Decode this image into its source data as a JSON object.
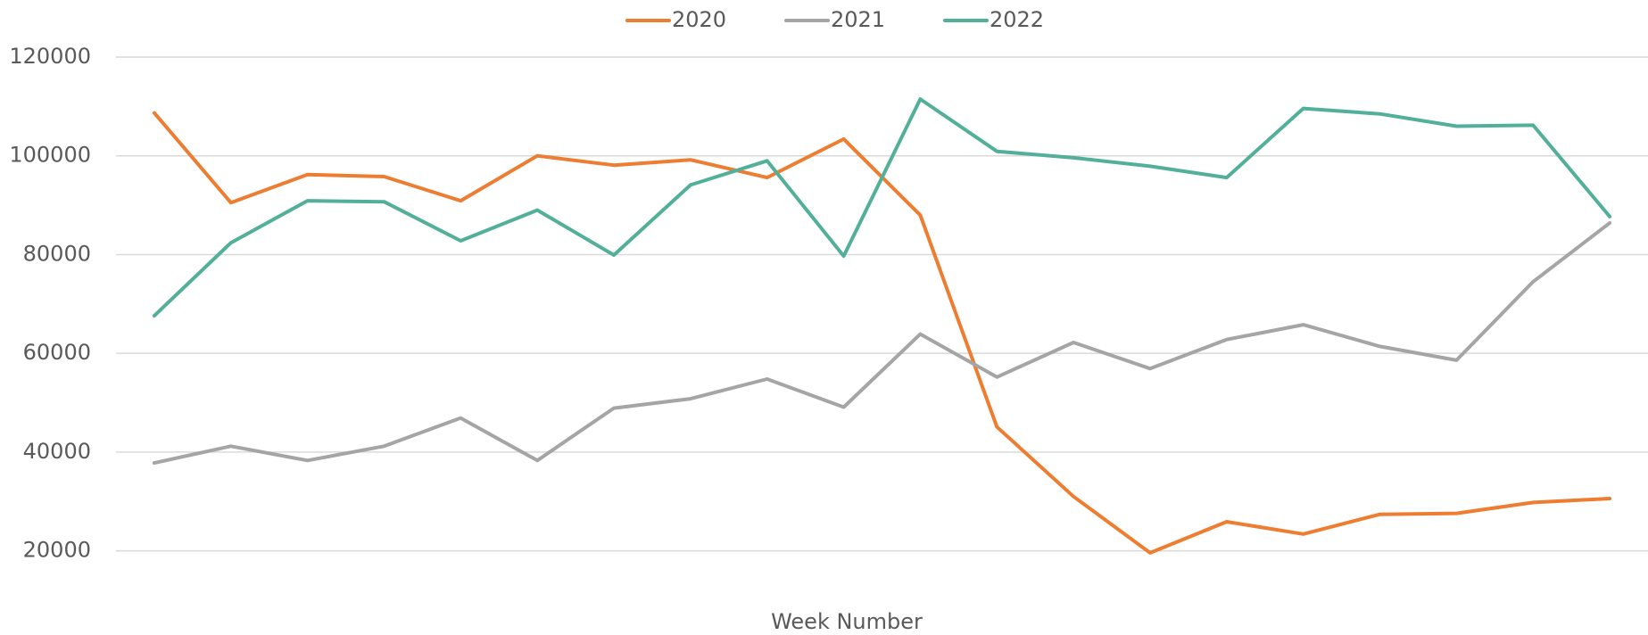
{
  "chart_data": {
    "type": "line",
    "x_label": "Week Number",
    "categories": [
      null,
      null,
      null,
      null,
      null,
      null,
      null,
      null,
      null,
      null,
      null,
      null,
      null,
      null,
      null,
      null,
      null,
      null,
      null,
      null
    ],
    "series": [
      {
        "name": "2020",
        "color": "#ed7d31",
        "values": [
          108700,
          90500,
          96200,
          95800,
          90900,
          100000,
          98100,
          99200,
          95600,
          103400,
          88000,
          45100,
          31000,
          19600,
          25900,
          23400,
          27400,
          27600,
          29800,
          30600
        ]
      },
      {
        "name": "2021",
        "color": "#a5a5a5",
        "values": [
          37800,
          41200,
          38300,
          41200,
          46900,
          38300,
          48900,
          50800,
          54800,
          49100,
          63900,
          55200,
          62200,
          56900,
          62800,
          65800,
          61400,
          58600,
          74500,
          86400
        ]
      },
      {
        "name": "2022",
        "color": "#52b09a",
        "values": [
          67600,
          82400,
          90900,
          90700,
          82800,
          89000,
          79900,
          94100,
          99000,
          79700,
          111500,
          100900,
          99600,
          97900,
          95600,
          109600,
          108500,
          106000,
          106200,
          87700
        ]
      }
    ],
    "ylim": [
      10000,
      120000
    ],
    "yticks": [
      20000,
      40000,
      60000,
      80000,
      100000,
      120000
    ],
    "grid": true,
    "legend": "top"
  }
}
